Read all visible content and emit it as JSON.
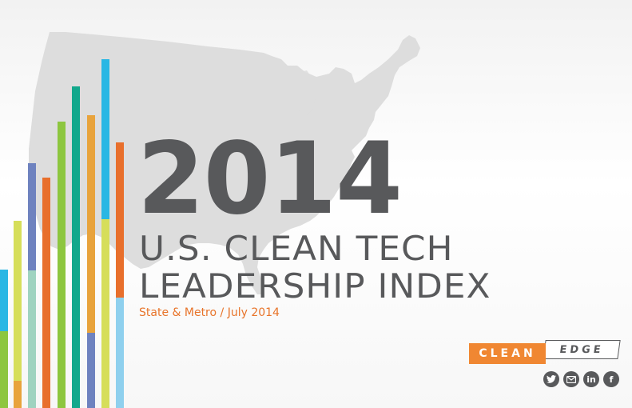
{
  "header": {
    "year": "2014",
    "title_line1": "U.S. CLEAN TECH",
    "title_line2": "LEADERSHIP INDEX",
    "subtitle": "State & Metro / July 2014"
  },
  "logo": {
    "part1": "CLEAN",
    "part2": "EDGE"
  },
  "social": [
    {
      "name": "twitter-icon"
    },
    {
      "name": "email-icon"
    },
    {
      "name": "linkedin-icon",
      "glyph": "in"
    },
    {
      "name": "facebook-icon",
      "glyph": "f"
    }
  ],
  "colors": {
    "title": "#58595b",
    "subtitle": "#e8742a",
    "logo_orange": "#f08732",
    "map": "#dedede",
    "bar_palette": [
      "#2ab7e4",
      "#8dc63f",
      "#d6de5a",
      "#e8a33c",
      "#e86f2c",
      "#6e82bf",
      "#12a88c",
      "#9fd3c0",
      "#8fd0ee"
    ]
  }
}
